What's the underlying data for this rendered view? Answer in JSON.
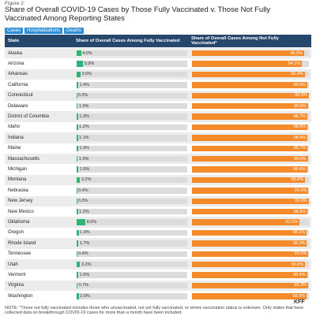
{
  "chart_data": {
    "type": "bar",
    "figure_label": "Figure 2",
    "title": "Share of Overall COVID-19 Cases by Those Fully Vaccinated v. Those Not Fully Vaccinated Among Reporting States",
    "tabs": [
      "Cases",
      "Hospitalizations",
      "Deaths"
    ],
    "category_header": "State",
    "categories": [
      "Alaska",
      "Arizona",
      "Arkansas",
      "California",
      "Connecticut",
      "Delaware",
      "District of Columbia",
      "Idaho",
      "Indiana",
      "Maine",
      "Massachusetts",
      "Michigan",
      "Montana",
      "Nebraska",
      "New Jersey",
      "New Mexico",
      "Oklahoma",
      "Oregon",
      "Rhode Island",
      "Tennessee",
      "Utah",
      "Vermont",
      "Virginia",
      "Washington"
    ],
    "xlim": [
      0,
      100
    ],
    "series": [
      {
        "name": "Share of Overall Cases Among Fully Vaccinated",
        "color": "#2bb673",
        "values": [
          4.0,
          5.9,
          3.6,
          1.4,
          0.2,
          1.0,
          1.3,
          1.2,
          1.1,
          1.3,
          1.0,
          1.6,
          3.2,
          0.4,
          0.2,
          1.2,
          8.0,
          1.9,
          1.7,
          0.4,
          3.2,
          1.6,
          0.7,
          2.0
        ],
        "value_labels": [
          "4.0%",
          "5.9%",
          "3.6%",
          "1.4%",
          "0.2%",
          "1.0%",
          "1.3%",
          "1.2%",
          "1.1%",
          "1.3%",
          "1.0%",
          "1.6%",
          "3.2%",
          "0.4%",
          "0.2%",
          "1.2%",
          "8.0%",
          "1.9%",
          "1.7%",
          "0.4%",
          "3.2%",
          "1.6%",
          "0.7%",
          "2.0%"
        ]
      },
      {
        "name": "Share of Overall Cases Among Not Fully Vaccinated*",
        "color": "#f58a2a",
        "values": [
          96.0,
          94.1,
          96.4,
          98.6,
          99.9,
          99.0,
          98.7,
          98.8,
          98.9,
          98.7,
          99.0,
          98.4,
          96.8,
          99.6,
          99.8,
          98.8,
          92.0,
          98.1,
          98.3,
          99.6,
          96.8,
          98.4,
          99.3,
          98.0
        ],
        "value_labels": [
          "96.0%",
          "94.1%",
          "96.4%",
          "98.6%",
          "99.9%",
          "99.0%",
          "98.7%",
          "98.8%",
          "98.9%",
          "98.7%",
          "99.0%",
          "98.4%",
          "96.8%",
          "99.6%",
          "99.8%",
          "98.8%",
          "92.0%",
          "98.1%",
          "98.3%",
          "99.6%",
          "96.8%",
          "98.4%",
          "99.3%",
          "98.0%"
        ]
      }
    ],
    "note": "NOTE: \"Those not fully vaccinated includes those who unvaccinated, not yet fully vaccinated, or where vaccination status is unknown. Only states that have collected data on breakthrough COVID-19 cases for more than a month have been included.",
    "logo": "KFF"
  }
}
